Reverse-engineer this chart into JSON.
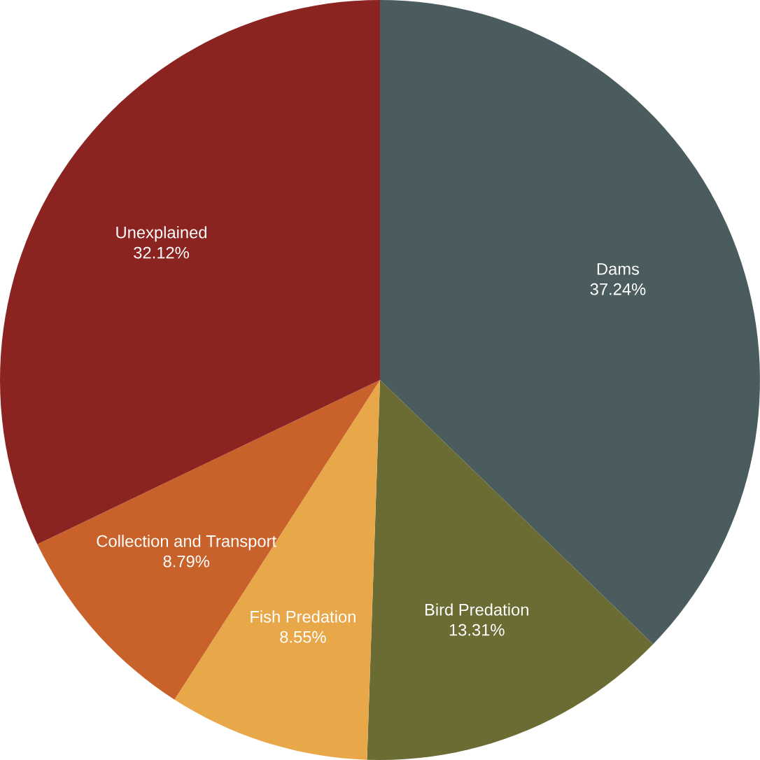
{
  "chart_data": {
    "type": "pie",
    "categories": [
      "Dams",
      "Bird Predation",
      "Fish Predation",
      "Collection and Transport",
      "Unexplained"
    ],
    "values": [
      37.24,
      13.31,
      8.55,
      8.79,
      32.12
    ],
    "value_labels": [
      "37.24%",
      "13.31%",
      "8.55%",
      "8.79%",
      "32.12%"
    ],
    "colors": [
      "#4a5c5e",
      "#6b6b34",
      "#e8a84a",
      "#c8622a",
      "#8b2320"
    ]
  }
}
